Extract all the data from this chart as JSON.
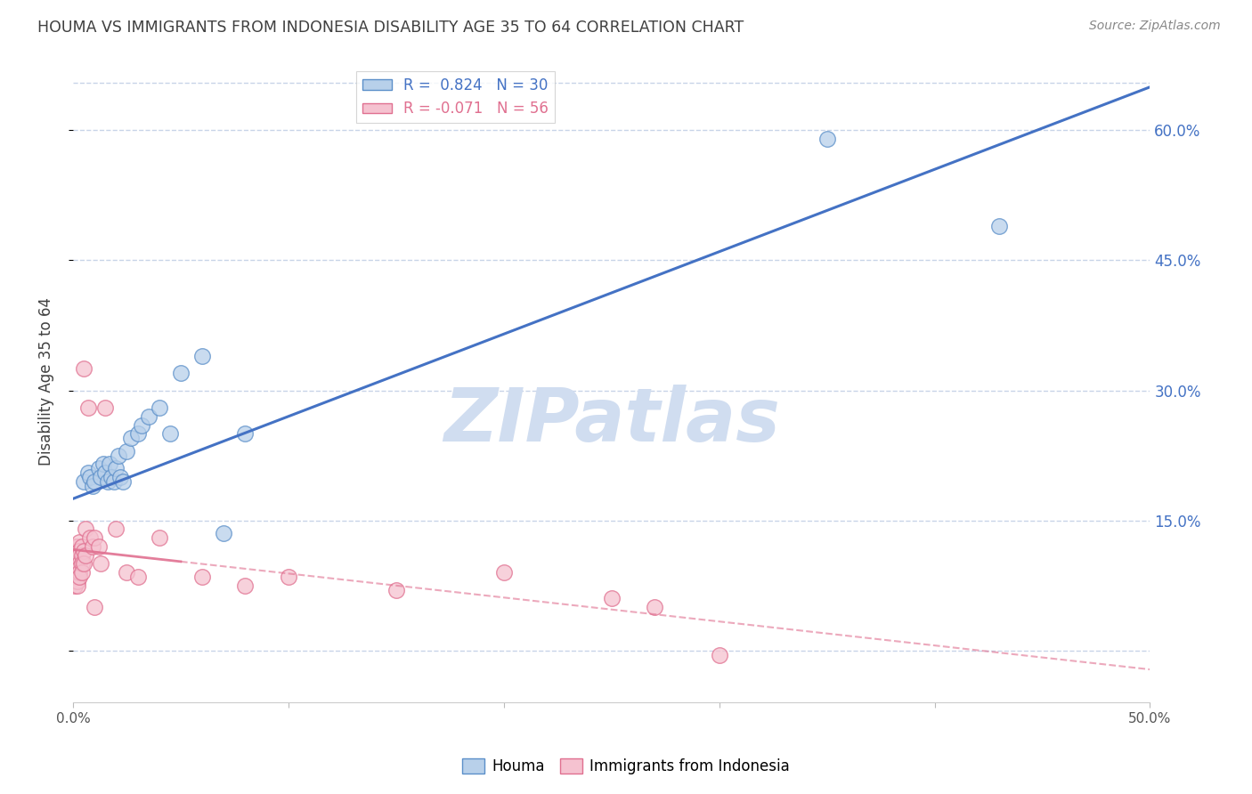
{
  "title": "HOUMA VS IMMIGRANTS FROM INDONESIA DISABILITY AGE 35 TO 64 CORRELATION CHART",
  "source": "Source: ZipAtlas.com",
  "ylabel": "Disability Age 35 to 64",
  "watermark": "ZIPatlas",
  "xlim": [
    0.0,
    0.5
  ],
  "ylim": [
    -0.06,
    0.68
  ],
  "xticks": [
    0.0,
    0.1,
    0.2,
    0.3,
    0.4,
    0.5
  ],
  "xtick_labels": [
    "0.0%",
    "",
    "",
    "",
    "",
    "50.0%"
  ],
  "yticks": [
    0.0,
    0.15,
    0.3,
    0.45,
    0.6
  ],
  "ytick_labels_right": [
    "",
    "15.0%",
    "30.0%",
    "45.0%",
    "60.0%"
  ],
  "houma_R": 0.824,
  "houma_N": 30,
  "indonesia_R": -0.071,
  "indonesia_N": 56,
  "houma_color": "#b8d0ea",
  "houma_edge_color": "#5b8fc9",
  "houma_line_color": "#4472c4",
  "indonesia_color": "#f5c2d0",
  "indonesia_edge_color": "#e07090",
  "indonesia_line_color": "#e07090",
  "houma_points_x": [
    0.005,
    0.007,
    0.008,
    0.009,
    0.01,
    0.012,
    0.013,
    0.014,
    0.015,
    0.016,
    0.017,
    0.018,
    0.019,
    0.02,
    0.021,
    0.022,
    0.023,
    0.025,
    0.027,
    0.03,
    0.032,
    0.035,
    0.04,
    0.045,
    0.05,
    0.06,
    0.07,
    0.08,
    0.35,
    0.43
  ],
  "houma_points_y": [
    0.195,
    0.205,
    0.2,
    0.19,
    0.195,
    0.21,
    0.2,
    0.215,
    0.205,
    0.195,
    0.215,
    0.2,
    0.195,
    0.21,
    0.225,
    0.2,
    0.195,
    0.23,
    0.245,
    0.25,
    0.26,
    0.27,
    0.28,
    0.25,
    0.32,
    0.34,
    0.135,
    0.25,
    0.59,
    0.49
  ],
  "indonesia_points_x": [
    0.001,
    0.001,
    0.001,
    0.001,
    0.001,
    0.001,
    0.001,
    0.001,
    0.001,
    0.001,
    0.002,
    0.002,
    0.002,
    0.002,
    0.002,
    0.002,
    0.002,
    0.002,
    0.002,
    0.002,
    0.003,
    0.003,
    0.003,
    0.003,
    0.003,
    0.003,
    0.003,
    0.004,
    0.004,
    0.004,
    0.004,
    0.005,
    0.005,
    0.005,
    0.006,
    0.006,
    0.007,
    0.008,
    0.009,
    0.01,
    0.01,
    0.012,
    0.013,
    0.015,
    0.02,
    0.025,
    0.03,
    0.04,
    0.06,
    0.08,
    0.1,
    0.15,
    0.2,
    0.25,
    0.27,
    0.3
  ],
  "indonesia_points_y": [
    0.12,
    0.115,
    0.11,
    0.105,
    0.1,
    0.095,
    0.09,
    0.085,
    0.08,
    0.075,
    0.12,
    0.115,
    0.11,
    0.105,
    0.1,
    0.095,
    0.09,
    0.085,
    0.08,
    0.075,
    0.125,
    0.115,
    0.11,
    0.1,
    0.095,
    0.09,
    0.085,
    0.12,
    0.11,
    0.1,
    0.09,
    0.325,
    0.115,
    0.1,
    0.14,
    0.11,
    0.28,
    0.13,
    0.12,
    0.13,
    0.05,
    0.12,
    0.1,
    0.28,
    0.14,
    0.09,
    0.085,
    0.13,
    0.085,
    0.075,
    0.085,
    0.07,
    0.09,
    0.06,
    0.05,
    -0.005
  ],
  "background_color": "#ffffff",
  "grid_color": "#c8d4e8",
  "title_color": "#404040",
  "right_axis_color": "#4472c4",
  "watermark_color": "#d0ddf0",
  "watermark_fontsize": 60,
  "indonesia_line_solid_end": 0.05,
  "houma_line_intercept": 0.175,
  "houma_line_slope": 0.95
}
